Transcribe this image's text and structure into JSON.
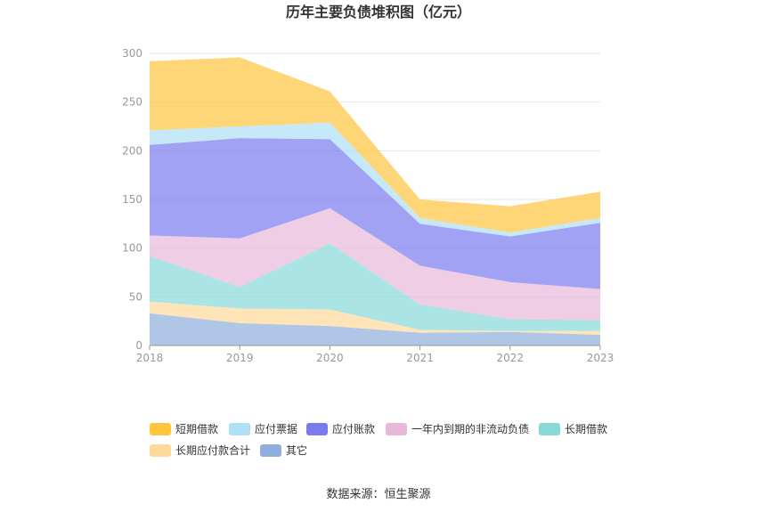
{
  "chart_data": {
    "type": "area",
    "stacked": true,
    "title": "历年主要负债堆积图（亿元）",
    "categories": [
      "2018",
      "2019",
      "2020",
      "2021",
      "2022",
      "2023"
    ],
    "ylim": [
      0,
      300
    ],
    "yticks": [
      0,
      50,
      100,
      150,
      200,
      250,
      300
    ],
    "grid": true,
    "legend_position": "bottom",
    "series": [
      {
        "name": "其它",
        "color": "#8eaedb",
        "values": [
          33,
          23,
          20,
          13,
          14,
          11
        ]
      },
      {
        "name": "长期应付款合计",
        "color": "#ffd99a",
        "values": [
          12,
          15,
          17,
          3,
          1,
          4
        ]
      },
      {
        "name": "长期借款",
        "color": "#88d8d8",
        "values": [
          47,
          22,
          68,
          26,
          12,
          11
        ]
      },
      {
        "name": "一年内到期的非流动负债",
        "color": "#e8b8d8",
        "values": [
          21,
          50,
          36,
          40,
          38,
          32
        ]
      },
      {
        "name": "应付账款",
        "color": "#7b7bf0",
        "values": [
          93,
          103,
          71,
          43,
          47,
          68
        ]
      },
      {
        "name": "应付票据",
        "color": "#aee0f8",
        "values": [
          15,
          12,
          17,
          6,
          4,
          5
        ]
      },
      {
        "name": "短期借款",
        "color": "#ffc53d",
        "values": [
          71,
          71,
          32,
          19,
          27,
          27
        ]
      }
    ],
    "legend_order": [
      "短期借款",
      "应付票据",
      "应付账款",
      "一年内到期的非流动负债",
      "长期借款",
      "长期应付款合计",
      "其它"
    ]
  },
  "source_text": "数据来源：恒生聚源"
}
